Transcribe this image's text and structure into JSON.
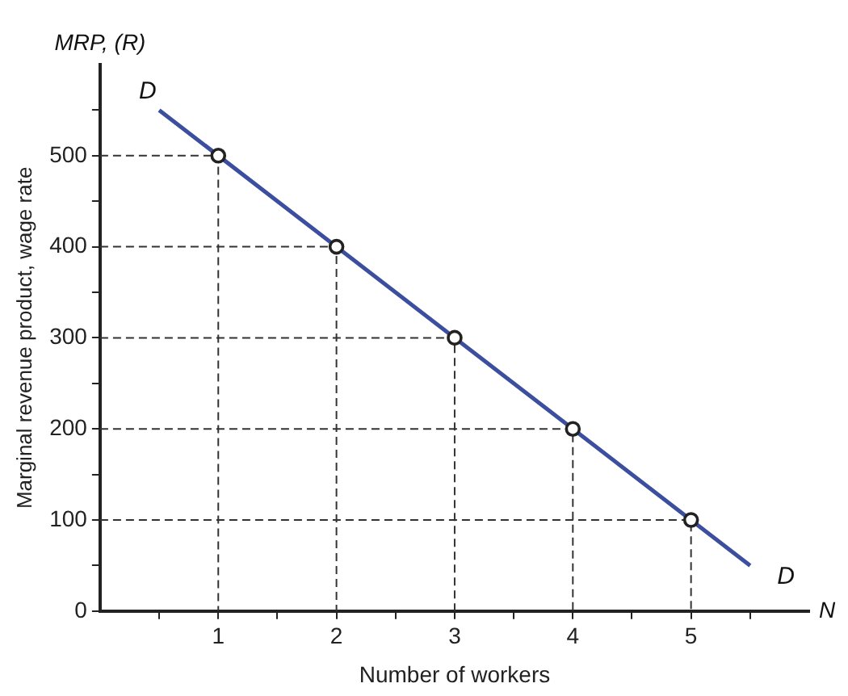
{
  "chart_data": {
    "type": "line",
    "xlabel": "Number of workers",
    "ylabel": "Marginal revenue product, wage rate",
    "annotations": [
      "MRP, (R)",
      "N",
      "D",
      "D"
    ],
    "xlim": [
      0,
      6
    ],
    "ylim": [
      0,
      600
    ],
    "xticks": [
      {
        "value": 0.5,
        "label": null
      },
      1,
      {
        "value": 1.5,
        "label": null
      },
      2,
      {
        "value": 2.5,
        "label": null
      },
      3,
      {
        "value": 3.5,
        "label": null
      },
      4,
      {
        "value": 4.5,
        "label": null
      },
      5,
      {
        "value": 5.5,
        "label": null
      }
    ],
    "yticks": [
      0,
      {
        "value": 50,
        "label": null
      },
      100,
      {
        "value": 150,
        "label": null
      },
      200,
      {
        "value": 250,
        "label": null
      },
      300,
      {
        "value": 350,
        "label": null
      },
      400,
      {
        "value": 450,
        "label": null
      },
      500,
      {
        "value": 550,
        "label": null
      }
    ],
    "grid": false,
    "legend": false,
    "series": [
      {
        "color": "#333333",
        "line_style": "dashed",
        "marker": "none",
        "x": [
          0,
          1,
          1
        ],
        "values": [
          500,
          500,
          0
        ]
      },
      {
        "color": "#333333",
        "line_style": "dashed",
        "marker": "none",
        "x": [
          0,
          2,
          2
        ],
        "values": [
          400,
          400,
          0
        ]
      },
      {
        "color": "#333333",
        "line_style": "dashed",
        "marker": "none",
        "x": [
          0,
          3,
          3
        ],
        "values": [
          300,
          300,
          0
        ]
      },
      {
        "color": "#333333",
        "line_style": "dashed",
        "marker": "none",
        "x": [
          0,
          4,
          4
        ],
        "values": [
          200,
          200,
          0
        ]
      },
      {
        "color": "#333333",
        "line_style": "dashed",
        "marker": "none",
        "x": [
          0,
          5,
          5
        ],
        "values": [
          100,
          100,
          0
        ]
      },
      {
        "color": "#3b4f9e",
        "line_style": "solid",
        "marker": "none",
        "x": [
          0.5,
          5.5
        ],
        "values": [
          550,
          50
        ]
      },
      {
        "type": "scatter",
        "color": "#222222",
        "marker": "circle",
        "x": [
          1,
          2,
          3,
          4,
          5
        ],
        "values": [
          500,
          400,
          300,
          200,
          100
        ]
      }
    ]
  }
}
